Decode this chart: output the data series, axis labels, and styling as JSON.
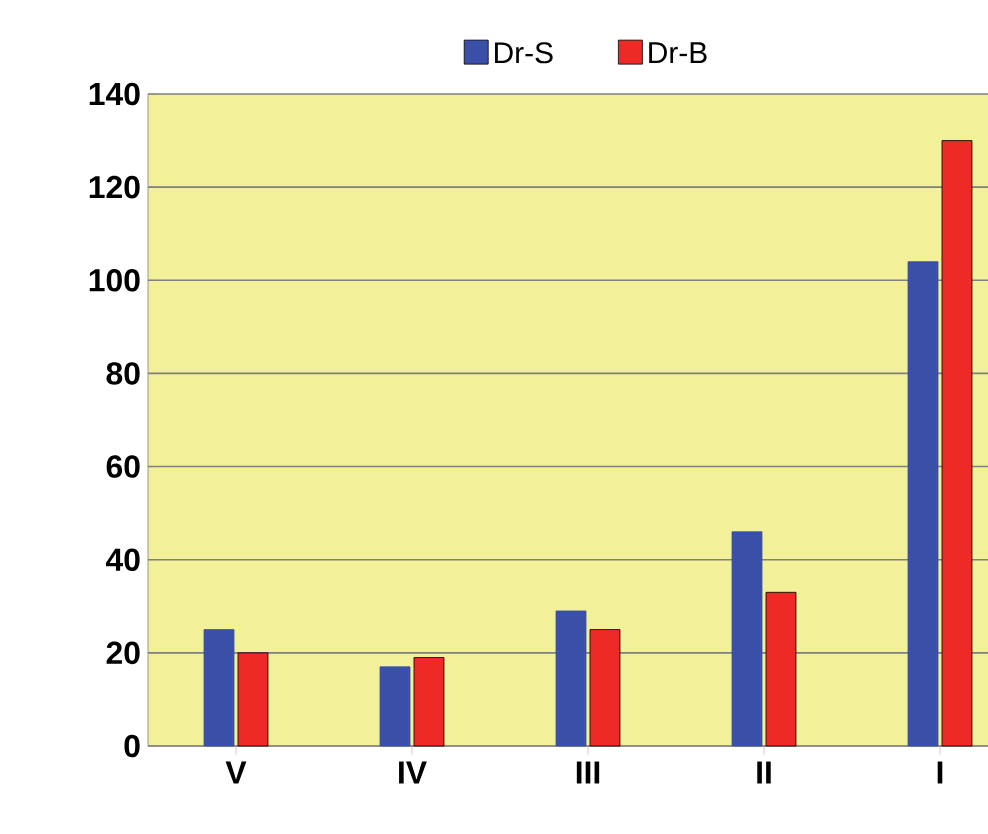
{
  "chart_data": {
    "type": "bar",
    "categories": [
      "V",
      "IV",
      "III",
      "II",
      "I"
    ],
    "series": [
      {
        "name": "Dr-S",
        "color": "#3a50a8",
        "values": [
          25,
          17,
          29,
          46,
          104
        ]
      },
      {
        "name": "Dr-B",
        "color": "#ee2a27",
        "values": [
          20,
          19,
          25,
          33,
          130
        ]
      }
    ],
    "ylim": [
      0,
      140
    ],
    "yticks": [
      0,
      20,
      40,
      60,
      80,
      100,
      120,
      140
    ],
    "grid": "y",
    "legend": "top"
  }
}
